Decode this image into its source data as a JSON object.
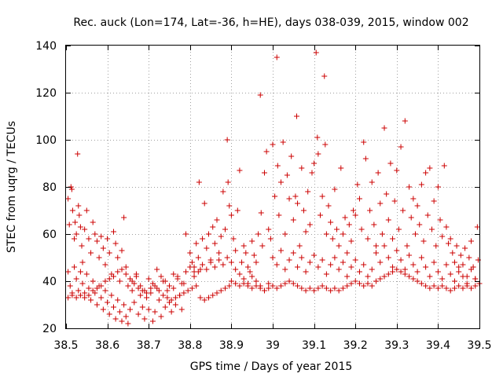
{
  "chart_data": {
    "type": "scatter",
    "title": "Rec. auck (Lon=174, Lat=-36, h=HE), days 038-039, 2015, window 002",
    "xlabel": "GPS time / Days of year 2015",
    "ylabel": "STEC from uqrg / TECUs",
    "xlim": [
      38.5,
      39.5
    ],
    "ylim": [
      20,
      140
    ],
    "xticks": [
      38.5,
      38.6,
      38.7,
      38.8,
      38.9,
      39.0,
      39.1,
      39.2,
      39.3,
      39.4,
      39.5
    ],
    "xtick_labels": [
      "38.5",
      "38.6",
      "38.7",
      "38.8",
      "38.9",
      "39",
      "39.1",
      "39.2",
      "39.3",
      "39.4",
      "39.5"
    ],
    "yticks": [
      20,
      40,
      60,
      80,
      100,
      120,
      140
    ],
    "ytick_labels": [
      "20",
      "40",
      "60",
      "80",
      "100",
      "120",
      "140"
    ],
    "grid": true,
    "marker": "+",
    "color": "#cc0000",
    "points": [
      [
        38.505,
        75
      ],
      [
        38.508,
        64
      ],
      [
        38.512,
        80
      ],
      [
        38.514,
        79
      ],
      [
        38.516,
        70
      ],
      [
        38.52,
        58
      ],
      [
        38.522,
        65
      ],
      [
        38.525,
        60
      ],
      [
        38.528,
        94
      ],
      [
        38.53,
        72
      ],
      [
        38.532,
        68
      ],
      [
        38.535,
        63
      ],
      [
        38.538,
        55
      ],
      [
        38.54,
        48
      ],
      [
        38.545,
        62
      ],
      [
        38.55,
        70
      ],
      [
        38.555,
        58
      ],
      [
        38.56,
        52
      ],
      [
        38.565,
        65
      ],
      [
        38.57,
        60
      ],
      [
        38.575,
        57
      ],
      [
        38.58,
        50
      ],
      [
        38.585,
        59
      ],
      [
        38.59,
        54
      ],
      [
        38.595,
        47
      ],
      [
        38.6,
        58
      ],
      [
        38.605,
        52
      ],
      [
        38.61,
        43
      ],
      [
        38.615,
        61
      ],
      [
        38.62,
        56
      ],
      [
        38.625,
        50
      ],
      [
        38.63,
        40
      ],
      [
        38.635,
        53
      ],
      [
        38.64,
        67
      ],
      [
        38.645,
        46
      ],
      [
        38.65,
        38
      ],
      [
        38.505,
        44
      ],
      [
        38.51,
        38
      ],
      [
        38.515,
        35
      ],
      [
        38.52,
        46
      ],
      [
        38.525,
        41
      ],
      [
        38.53,
        36
      ],
      [
        38.535,
        44
      ],
      [
        38.54,
        39
      ],
      [
        38.545,
        33
      ],
      [
        38.55,
        43
      ],
      [
        38.555,
        37
      ],
      [
        38.56,
        32
      ],
      [
        38.565,
        40
      ],
      [
        38.57,
        35
      ],
      [
        38.575,
        30
      ],
      [
        38.58,
        38
      ],
      [
        38.585,
        33
      ],
      [
        38.59,
        28
      ],
      [
        38.595,
        36
      ],
      [
        38.6,
        31
      ],
      [
        38.605,
        26
      ],
      [
        38.61,
        34
      ],
      [
        38.615,
        29
      ],
      [
        38.62,
        24
      ],
      [
        38.625,
        32
      ],
      [
        38.63,
        27
      ],
      [
        38.635,
        23
      ],
      [
        38.64,
        30
      ],
      [
        38.645,
        25
      ],
      [
        38.65,
        22
      ],
      [
        38.655,
        28
      ],
      [
        38.66,
        36
      ],
      [
        38.665,
        31
      ],
      [
        38.67,
        42
      ],
      [
        38.675,
        26
      ],
      [
        38.68,
        34
      ],
      [
        38.685,
        29
      ],
      [
        38.69,
        24
      ],
      [
        38.695,
        33
      ],
      [
        38.7,
        28
      ],
      [
        38.705,
        35
      ],
      [
        38.71,
        23
      ],
      [
        38.715,
        27
      ],
      [
        38.72,
        45
      ],
      [
        38.725,
        32
      ],
      [
        38.73,
        25
      ],
      [
        38.735,
        40
      ],
      [
        38.74,
        29
      ],
      [
        38.745,
        36
      ],
      [
        38.75,
        31
      ],
      [
        38.755,
        27
      ],
      [
        38.76,
        37
      ],
      [
        38.765,
        30
      ],
      [
        38.77,
        42
      ],
      [
        38.775,
        34
      ],
      [
        38.78,
        28
      ],
      [
        38.785,
        39
      ],
      [
        38.505,
        33
      ],
      [
        38.515,
        34
      ],
      [
        38.525,
        33
      ],
      [
        38.535,
        34
      ],
      [
        38.545,
        35
      ],
      [
        38.555,
        34
      ],
      [
        38.565,
        36
      ],
      [
        38.575,
        37
      ],
      [
        38.585,
        38
      ],
      [
        38.595,
        40
      ],
      [
        38.605,
        41
      ],
      [
        38.615,
        42
      ],
      [
        38.625,
        44
      ],
      [
        38.635,
        45
      ],
      [
        38.645,
        43
      ],
      [
        38.655,
        41
      ],
      [
        38.665,
        39
      ],
      [
        38.675,
        37
      ],
      [
        38.685,
        36
      ],
      [
        38.695,
        35
      ],
      [
        38.705,
        37
      ],
      [
        38.715,
        38
      ],
      [
        38.725,
        36
      ],
      [
        38.735,
        34
      ],
      [
        38.745,
        33
      ],
      [
        38.755,
        32
      ],
      [
        38.765,
        33
      ],
      [
        38.775,
        34
      ],
      [
        38.785,
        35
      ],
      [
        38.795,
        36
      ],
      [
        38.805,
        37
      ],
      [
        38.815,
        38
      ],
      [
        38.825,
        33
      ],
      [
        38.835,
        32
      ],
      [
        38.845,
        33
      ],
      [
        38.855,
        34
      ],
      [
        38.865,
        35
      ],
      [
        38.875,
        36
      ],
      [
        38.885,
        37
      ],
      [
        38.895,
        38
      ],
      [
        38.66,
        40
      ],
      [
        38.67,
        43
      ],
      [
        38.68,
        38
      ],
      [
        38.69,
        36
      ],
      [
        38.7,
        41
      ],
      [
        38.71,
        39
      ],
      [
        38.72,
        37
      ],
      [
        38.73,
        42
      ],
      [
        38.74,
        40
      ],
      [
        38.75,
        38
      ],
      [
        38.76,
        43
      ],
      [
        38.77,
        41
      ],
      [
        38.78,
        39
      ],
      [
        38.79,
        44
      ],
      [
        38.8,
        46
      ],
      [
        38.81,
        42
      ],
      [
        38.79,
        60
      ],
      [
        38.8,
        52
      ],
      [
        38.805,
        48
      ],
      [
        38.81,
        44
      ],
      [
        38.815,
        56
      ],
      [
        38.82,
        50
      ],
      [
        38.822,
        82
      ],
      [
        38.825,
        45
      ],
      [
        38.83,
        58
      ],
      [
        38.835,
        73
      ],
      [
        38.84,
        54
      ],
      [
        38.845,
        60
      ],
      [
        38.85,
        49
      ],
      [
        38.855,
        63
      ],
      [
        38.86,
        56
      ],
      [
        38.865,
        66
      ],
      [
        38.87,
        52
      ],
      [
        38.875,
        59
      ],
      [
        38.88,
        78
      ],
      [
        38.885,
        62
      ],
      [
        38.89,
        100
      ],
      [
        38.892,
        82
      ],
      [
        38.895,
        72
      ],
      [
        38.9,
        68
      ],
      [
        38.905,
        58
      ],
      [
        38.91,
        53
      ],
      [
        38.915,
        70
      ],
      [
        38.92,
        87
      ],
      [
        38.925,
        48
      ],
      [
        38.93,
        55
      ],
      [
        38.935,
        52
      ],
      [
        38.94,
        46
      ],
      [
        38.945,
        44
      ],
      [
        38.95,
        57
      ],
      [
        38.955,
        51
      ],
      [
        38.96,
        48
      ],
      [
        38.965,
        60
      ],
      [
        38.97,
        119
      ],
      [
        38.972,
        69
      ],
      [
        38.975,
        55
      ],
      [
        38.98,
        86
      ],
      [
        38.985,
        95
      ],
      [
        38.99,
        62
      ],
      [
        38.995,
        58
      ],
      [
        38.81,
        46
      ],
      [
        38.82,
        44
      ],
      [
        38.83,
        47
      ],
      [
        38.84,
        45
      ],
      [
        38.85,
        48
      ],
      [
        38.86,
        46
      ],
      [
        38.87,
        49
      ],
      [
        38.88,
        47
      ],
      [
        38.89,
        50
      ],
      [
        38.9,
        48
      ],
      [
        38.91,
        45
      ],
      [
        38.92,
        43
      ],
      [
        38.93,
        41
      ],
      [
        38.94,
        39
      ],
      [
        38.95,
        42
      ],
      [
        38.96,
        40
      ],
      [
        38.97,
        38
      ],
      [
        38.98,
        36
      ],
      [
        38.99,
        39
      ],
      [
        38.9,
        40
      ],
      [
        38.91,
        39
      ],
      [
        38.92,
        38
      ],
      [
        38.93,
        39
      ],
      [
        38.94,
        38
      ],
      [
        38.95,
        37
      ],
      [
        38.96,
        38
      ],
      [
        38.97,
        37
      ],
      [
        38.98,
        36
      ],
      [
        38.99,
        37
      ],
      [
        39.0,
        38
      ],
      [
        39.01,
        37
      ],
      [
        39.02,
        38
      ],
      [
        39.03,
        39
      ],
      [
        39.04,
        40
      ],
      [
        39.05,
        39
      ],
      [
        39.06,
        38
      ],
      [
        39.07,
        37
      ],
      [
        39.08,
        36
      ],
      [
        39.09,
        37
      ],
      [
        39.1,
        36
      ],
      [
        39.11,
        37
      ],
      [
        39.12,
        38
      ],
      [
        39.13,
        37
      ],
      [
        39.14,
        36
      ],
      [
        39.15,
        37
      ],
      [
        39.16,
        36
      ],
      [
        39.17,
        37
      ],
      [
        39.18,
        38
      ],
      [
        39.19,
        39
      ],
      [
        39.2,
        40
      ],
      [
        39.21,
        39
      ],
      [
        39.22,
        38
      ],
      [
        39.23,
        39
      ],
      [
        39.24,
        38
      ],
      [
        39.0,
        98
      ],
      [
        39.005,
        76
      ],
      [
        39.01,
        135
      ],
      [
        39.012,
        89
      ],
      [
        39.015,
        68
      ],
      [
        39.02,
        82
      ],
      [
        39.025,
        99
      ],
      [
        39.03,
        60
      ],
      [
        39.035,
        85
      ],
      [
        39.04,
        75
      ],
      [
        39.045,
        93
      ],
      [
        39.05,
        66
      ],
      [
        39.055,
        76
      ],
      [
        39.058,
        110
      ],
      [
        39.06,
        73
      ],
      [
        39.065,
        55
      ],
      [
        39.07,
        88
      ],
      [
        39.075,
        70
      ],
      [
        39.08,
        61
      ],
      [
        39.085,
        78
      ],
      [
        39.09,
        64
      ],
      [
        39.095,
        86
      ],
      [
        39.1,
        90
      ],
      [
        39.105,
        137
      ],
      [
        39.108,
        101
      ],
      [
        39.11,
        94
      ],
      [
        39.115,
        68
      ],
      [
        39.12,
        76
      ],
      [
        39.125,
        127
      ],
      [
        39.127,
        98
      ],
      [
        39.13,
        60
      ],
      [
        39.135,
        72
      ],
      [
        39.14,
        65
      ],
      [
        39.145,
        58
      ],
      [
        39.15,
        79
      ],
      [
        39.155,
        62
      ],
      [
        39.16,
        55
      ],
      [
        39.165,
        88
      ],
      [
        39.17,
        60
      ],
      [
        39.175,
        67
      ],
      [
        39.18,
        52
      ],
      [
        39.185,
        64
      ],
      [
        39.19,
        57
      ],
      [
        39.195,
        70
      ],
      [
        39.0,
        50
      ],
      [
        39.01,
        47
      ],
      [
        39.02,
        53
      ],
      [
        39.03,
        45
      ],
      [
        39.04,
        49
      ],
      [
        39.05,
        52
      ],
      [
        39.06,
        46
      ],
      [
        39.07,
        50
      ],
      [
        39.08,
        44
      ],
      [
        39.09,
        48
      ],
      [
        39.1,
        51
      ],
      [
        39.11,
        46
      ],
      [
        39.12,
        49
      ],
      [
        39.13,
        43
      ],
      [
        39.14,
        47
      ],
      [
        39.15,
        50
      ],
      [
        39.16,
        45
      ],
      [
        39.17,
        48
      ],
      [
        39.18,
        42
      ],
      [
        39.19,
        46
      ],
      [
        39.2,
        49
      ],
      [
        39.21,
        44
      ],
      [
        39.22,
        47
      ],
      [
        39.23,
        42
      ],
      [
        39.24,
        45
      ],
      [
        39.2,
        68
      ],
      [
        39.205,
        81
      ],
      [
        39.21,
        75
      ],
      [
        39.215,
        62
      ],
      [
        39.22,
        99
      ],
      [
        39.225,
        92
      ],
      [
        39.23,
        58
      ],
      [
        39.235,
        70
      ],
      [
        39.24,
        82
      ],
      [
        39.245,
        64
      ],
      [
        39.25,
        55
      ],
      [
        39.255,
        86
      ],
      [
        39.26,
        73
      ],
      [
        39.265,
        60
      ],
      [
        39.27,
        105
      ],
      [
        39.275,
        77
      ],
      [
        39.28,
        66
      ],
      [
        39.285,
        90
      ],
      [
        39.29,
        58
      ],
      [
        39.295,
        74
      ],
      [
        39.3,
        87
      ],
      [
        39.305,
        62
      ],
      [
        39.31,
        97
      ],
      [
        39.315,
        70
      ],
      [
        39.32,
        108
      ],
      [
        39.325,
        55
      ],
      [
        39.33,
        80
      ],
      [
        39.335,
        67
      ],
      [
        39.34,
        75
      ],
      [
        39.345,
        60
      ],
      [
        39.35,
        72
      ],
      [
        39.355,
        64
      ],
      [
        39.36,
        81
      ],
      [
        39.365,
        57
      ],
      [
        39.37,
        86
      ],
      [
        39.375,
        68
      ],
      [
        39.38,
        88
      ],
      [
        39.385,
        62
      ],
      [
        39.39,
        74
      ],
      [
        39.395,
        55
      ],
      [
        39.4,
        80
      ],
      [
        39.405,
        66
      ],
      [
        39.41,
        59
      ],
      [
        39.415,
        89
      ],
      [
        39.42,
        63
      ],
      [
        39.425,
        56
      ],
      [
        39.25,
        52
      ],
      [
        39.26,
        48
      ],
      [
        39.27,
        55
      ],
      [
        39.28,
        50
      ],
      [
        39.29,
        46
      ],
      [
        39.3,
        53
      ],
      [
        39.31,
        49
      ],
      [
        39.32,
        45
      ],
      [
        39.33,
        51
      ],
      [
        39.34,
        47
      ],
      [
        39.35,
        44
      ],
      [
        39.36,
        50
      ],
      [
        39.37,
        46
      ],
      [
        39.38,
        42
      ],
      [
        39.39,
        48
      ],
      [
        39.4,
        44
      ],
      [
        39.41,
        41
      ],
      [
        39.42,
        47
      ],
      [
        39.43,
        43
      ],
      [
        39.44,
        40
      ],
      [
        39.45,
        46
      ],
      [
        39.46,
        42
      ],
      [
        39.47,
        39
      ],
      [
        39.48,
        45
      ],
      [
        39.49,
        41
      ],
      [
        39.25,
        40
      ],
      [
        39.26,
        41
      ],
      [
        39.27,
        42
      ],
      [
        39.28,
        43
      ],
      [
        39.29,
        44
      ],
      [
        39.3,
        45
      ],
      [
        39.31,
        44
      ],
      [
        39.32,
        43
      ],
      [
        39.33,
        42
      ],
      [
        39.34,
        41
      ],
      [
        39.35,
        40
      ],
      [
        39.36,
        39
      ],
      [
        39.37,
        38
      ],
      [
        39.38,
        37
      ],
      [
        39.39,
        38
      ],
      [
        39.4,
        37
      ],
      [
        39.41,
        38
      ],
      [
        39.42,
        37
      ],
      [
        39.43,
        36
      ],
      [
        39.44,
        37
      ],
      [
        39.45,
        38
      ],
      [
        39.46,
        37
      ],
      [
        39.47,
        38
      ],
      [
        39.48,
        37
      ],
      [
        39.49,
        38
      ],
      [
        39.43,
        58
      ],
      [
        39.435,
        52
      ],
      [
        39.44,
        48
      ],
      [
        39.445,
        55
      ],
      [
        39.45,
        44
      ],
      [
        39.455,
        51
      ],
      [
        39.46,
        47
      ],
      [
        39.465,
        54
      ],
      [
        39.47,
        42
      ],
      [
        39.475,
        50
      ],
      [
        39.48,
        57
      ],
      [
        39.485,
        46
      ],
      [
        39.49,
        41
      ],
      [
        39.495,
        63
      ],
      [
        39.497,
        49
      ],
      [
        39.5,
        39
      ]
    ]
  }
}
